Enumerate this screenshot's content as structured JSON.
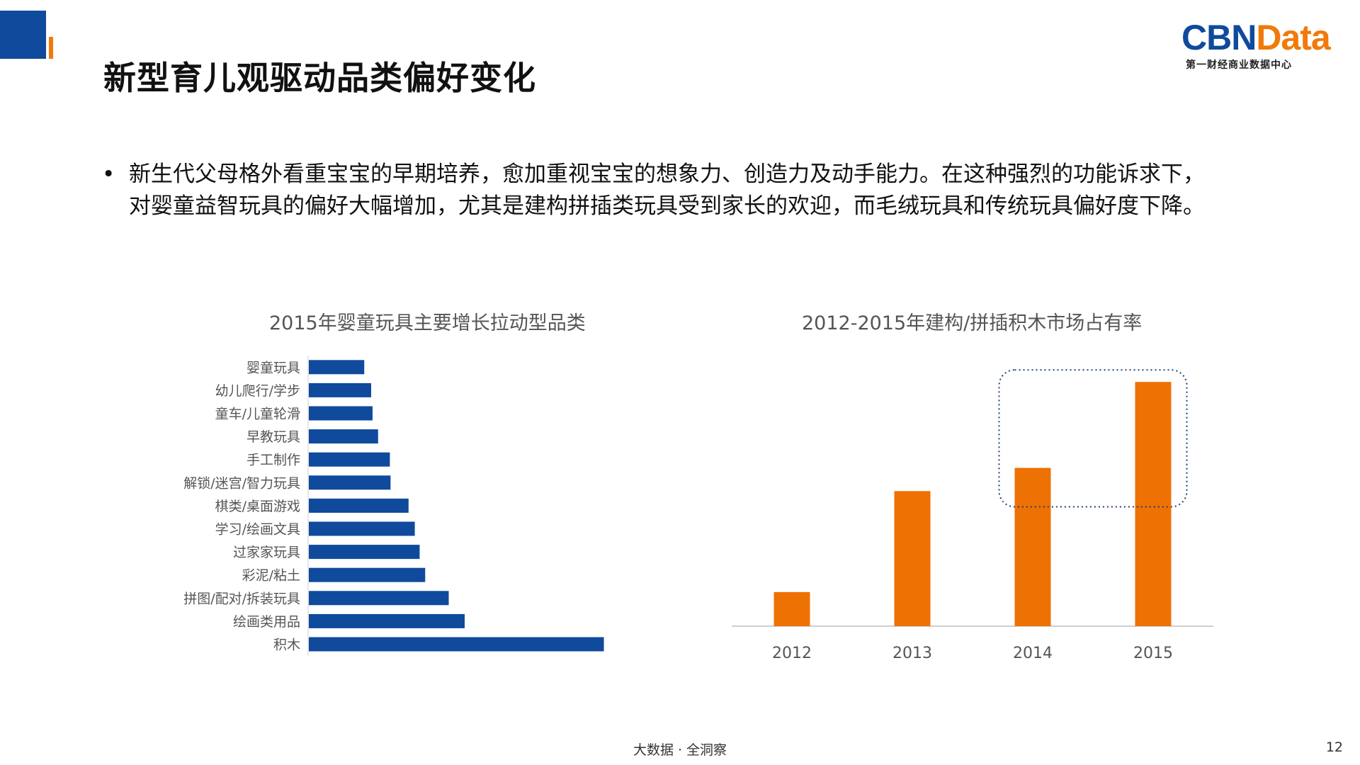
{
  "page": {
    "title": "新型育儿观驱动品类偏好变化",
    "bullet_lines": [
      "新生代父母格外看重宝宝的早期培养，愈加重视宝宝的想象力、创造力及动手能力。在这种强烈的功能诉求下，",
      "对婴童益智玩具的偏好大幅增加，尤其是建构拼插类玩具受到家长的欢迎，而毛绒玩具和传统玩具偏好度下降。"
    ],
    "bullet_symbol": "•",
    "logo_brand_a": "CBN",
    "logo_brand_b": "Data",
    "logo_sub": "第一财经商业数据中心",
    "footer": "大数据 · 全洞察",
    "page_number": "12"
  },
  "colors": {
    "brand_blue": "#0f4a9c",
    "brand_orange": "#f07a0a",
    "bar_blue": "#0f4a9c",
    "bar_orange": "#ee7104"
  },
  "chart_data": [
    {
      "type": "bar",
      "orientation": "horizontal",
      "title": "2015年婴童玩具主要增长拉动型品类",
      "categories": [
        "婴童玩具",
        "幼儿爬行/学步",
        "童车/儿童轮滑",
        "早教玩具",
        "手工制作",
        "解锁/迷宫/智力玩具",
        "棋类/桌面游戏",
        "学习/绘画文具",
        "过家家玩具",
        "彩泥/粘土",
        "拼图/配对/拆装玩具",
        "绘画类用品",
        "积木"
      ],
      "values": [
        8.0,
        9.0,
        9.2,
        10.0,
        11.7,
        11.8,
        14.4,
        15.3,
        16.0,
        16.8,
        20.2,
        22.5,
        42.6
      ],
      "xlim": [
        0,
        45
      ],
      "axis_ticks_visible": false,
      "value_note": "no value axis printed; values are relative bar lengths"
    },
    {
      "type": "bar",
      "title": "2012-2015年建构/拼插积木市场占有率",
      "categories": [
        "2012",
        "2013",
        "2014",
        "2015"
      ],
      "values": [
        5.0,
        19.8,
        23.2,
        35.8
      ],
      "ylim": [
        0,
        38
      ],
      "highlight": [
        "2014",
        "2015"
      ],
      "y_axis_visible": false
    }
  ]
}
